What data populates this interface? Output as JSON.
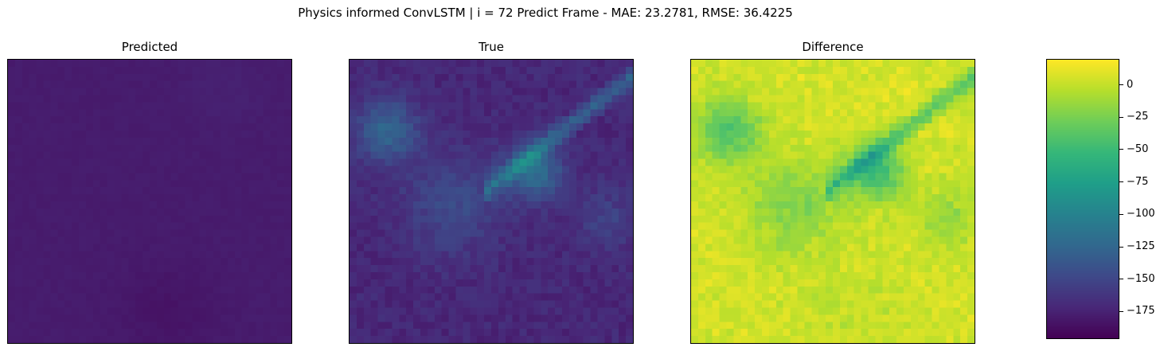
{
  "chart_data": {
    "type": "heatmap",
    "title": "Physics informed ConvLSTM | i = 72 Predict Frame - MAE: 23.2781, RMSE: 36.4225",
    "colormap": "viridis",
    "grid": false,
    "vmin": -195,
    "vmax": 20,
    "panels": [
      {
        "title": "Predicted",
        "description": "nearly uniform dark purple field, values around -185 to -175"
      },
      {
        "title": "True",
        "description": "dark purple/blue field with teal diagonal streaks toward upper right, values mostly -185 to -130"
      },
      {
        "title": "Difference",
        "description": "mostly yellow-green field with blue/teal patches, values mostly -150 to 15"
      }
    ],
    "colorbar": {
      "ticks": [
        0,
        -25,
        -50,
        -75,
        -100,
        -125,
        -150,
        -175
      ],
      "tick_labels": [
        "0",
        "−25",
        "−50",
        "−75",
        "−100",
        "−125",
        "−150",
        "−175"
      ],
      "range": [
        -195,
        20
      ]
    }
  }
}
